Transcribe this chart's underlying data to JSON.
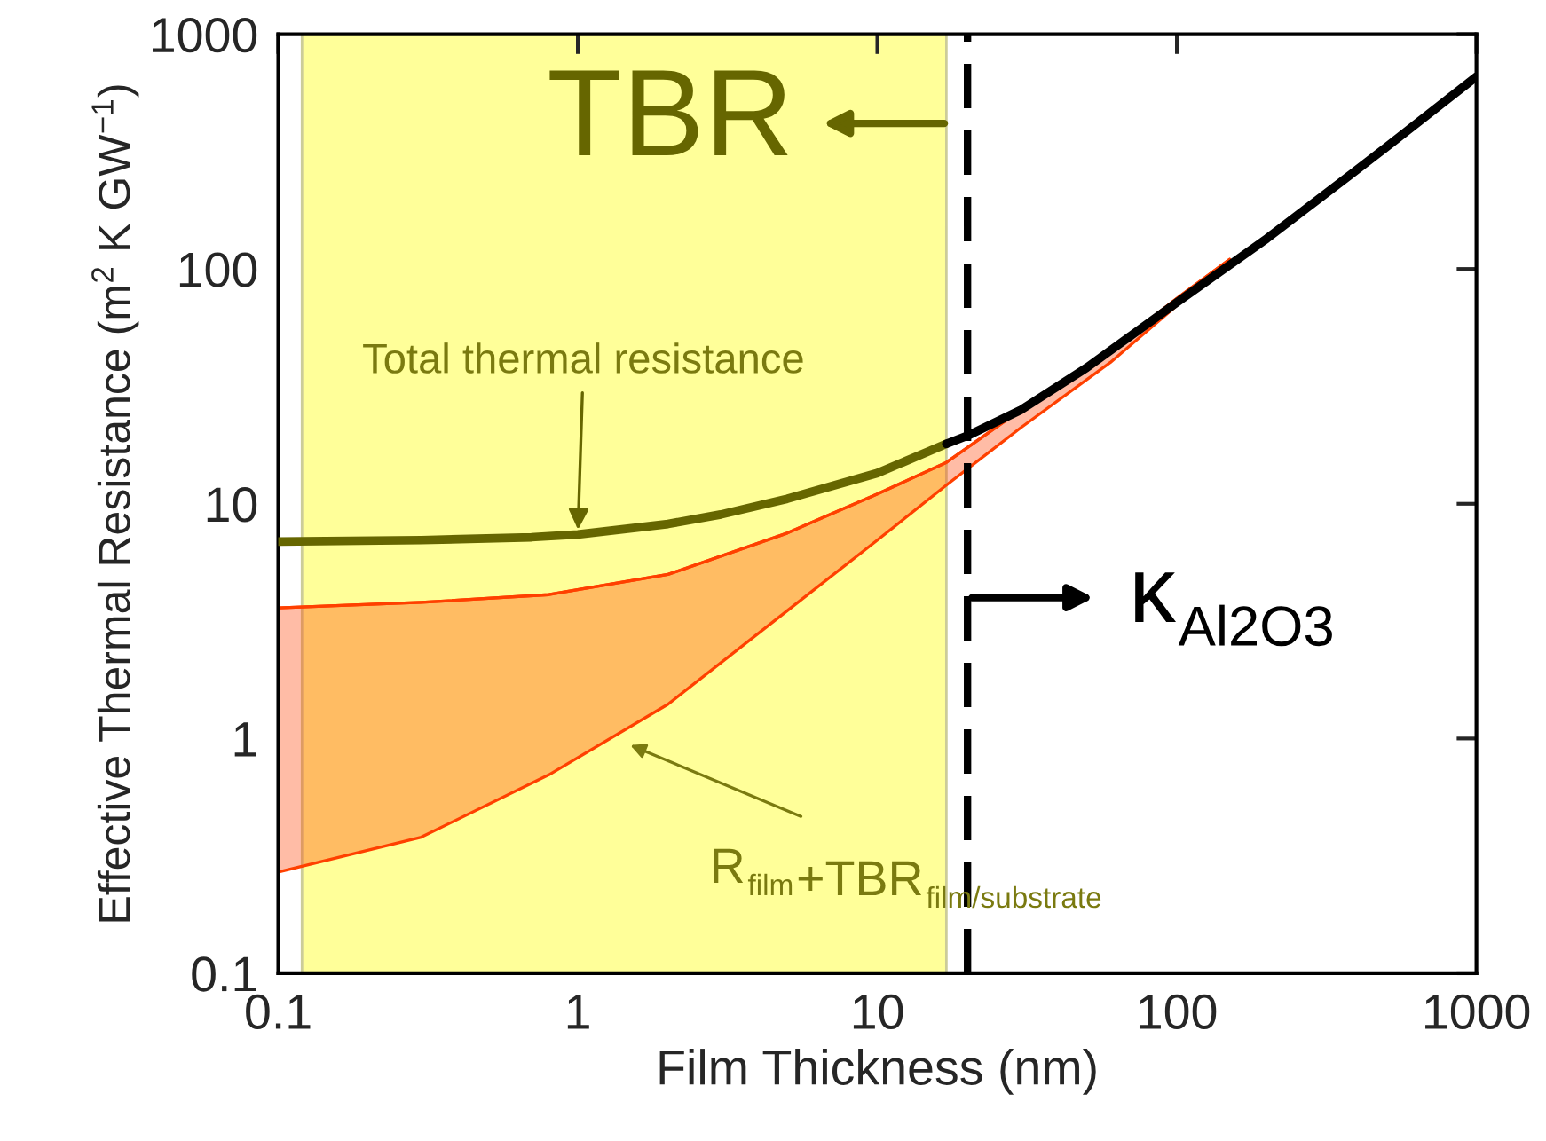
{
  "chart_data": {
    "type": "line",
    "xlabel": "Film Thickness (nm)",
    "ylabel": "Effective Thermal Resistance (m$^{2}$ K GW$^{−1}$)",
    "log": "xy",
    "xlim": [
      0.1,
      1000
    ],
    "ylim": [
      0.1,
      1000
    ],
    "xticks": [
      0.1,
      1,
      10,
      100,
      1000
    ],
    "yticks": [
      0.1,
      1,
      10,
      100,
      1000
    ],
    "grid": false,
    "series": [
      {
        "color": "#ff4000",
        "x": [
          0.1,
          0.3,
          0.8,
          2,
          5,
          10,
          17,
          30,
          60,
          100,
          150
        ],
        "values": [
          3.6,
          3.8,
          4.1,
          5.0,
          7.5,
          11,
          15,
          25,
          45,
          75,
          110
        ],
        "lower": [
          0.27,
          0.38,
          0.7,
          1.4,
          3.5,
          7,
          12,
          21,
          40,
          70,
          110
        ],
        "upper": [
          3.6,
          3.8,
          4.1,
          5.0,
          7.5,
          11,
          15,
          25,
          45,
          75,
          110
        ]
      },
      {
        "color": "#666600",
        "x": [
          0.1,
          0.3,
          0.7,
          1,
          2,
          3,
          5,
          10,
          17
        ],
        "values": [
          6.9,
          7.0,
          7.2,
          7.4,
          8.2,
          9.0,
          10.5,
          13.5,
          18
        ]
      },
      {
        "color": "#000000",
        "x": [
          17,
          20,
          30,
          50,
          100,
          200,
          500,
          1000
        ],
        "values": [
          18,
          19.5,
          25,
          38,
          72,
          135,
          330,
          660
        ]
      }
    ],
    "bands": [
      {
        "axis": "x",
        "from": 0.12,
        "to": 17,
        "color": "#ffff99"
      }
    ],
    "ref_lines": [
      {
        "axis": "x",
        "value": 20,
        "color": "#000000",
        "line_style": "dashed"
      }
    ],
    "annotations": [
      "TBR",
      "κ$_{Al2O3}$",
      {
        "text": "Total thermal resistance",
        "x": 1.0,
        "y": 7.4
      },
      "R$_{film}$+TBR$_{film/substrate}$"
    ]
  }
}
